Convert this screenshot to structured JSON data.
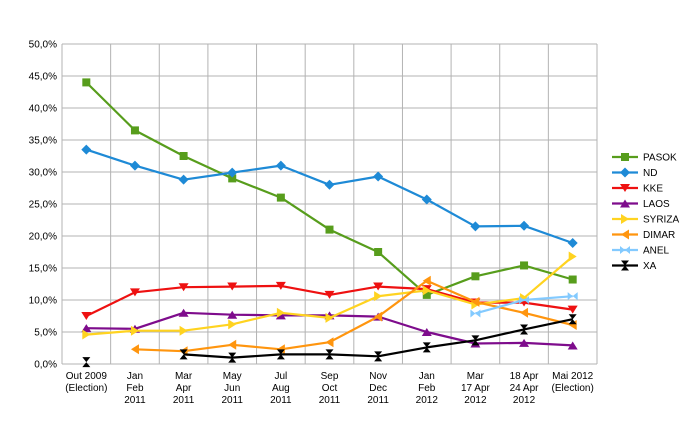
{
  "chart_data": {
    "type": "line",
    "title": "",
    "xlabel": "",
    "ylabel": "",
    "ylim": [
      0,
      50
    ],
    "ytick_step": 5,
    "ytick_labels": [
      "0,0%",
      "5,0%",
      "10,0%",
      "15,0%",
      "20,0%",
      "25,0%",
      "30,0%",
      "35,0%",
      "40,0%",
      "45,0%",
      "50,0%"
    ],
    "grid": "horizontal",
    "legend_position": "right",
    "categories": [
      [
        "Out 2009",
        "(Election)"
      ],
      [
        "Jan",
        "Feb",
        "2011"
      ],
      [
        "Mar",
        "Apr",
        "2011"
      ],
      [
        "May",
        "Jun",
        "2011"
      ],
      [
        "Jul",
        "Aug",
        "2011"
      ],
      [
        "Sep",
        "Oct",
        "2011"
      ],
      [
        "Nov",
        "Dec",
        "2011"
      ],
      [
        "Jan",
        "Feb",
        "2012"
      ],
      [
        "Mar",
        "17 Apr",
        "2012"
      ],
      [
        "18 Apr",
        "24 Apr",
        "2012"
      ],
      [
        "Mai 2012",
        "(Election)"
      ]
    ],
    "series": [
      {
        "name": "PASOK",
        "color": "#579d1c",
        "marker": "square",
        "values": [
          44.0,
          36.5,
          32.5,
          29.0,
          26.0,
          21.0,
          17.5,
          10.8,
          13.7,
          15.4,
          13.2
        ]
      },
      {
        "name": "ND",
        "color": "#1e8ad6",
        "marker": "diamond",
        "values": [
          33.5,
          31.0,
          28.8,
          29.9,
          31.0,
          28.0,
          29.3,
          25.7,
          21.5,
          21.6,
          18.9
        ]
      },
      {
        "name": "KKE",
        "color": "#ee1111",
        "marker": "triangle-down",
        "values": [
          7.5,
          11.2,
          12.0,
          12.1,
          12.2,
          10.8,
          12.1,
          11.7,
          9.6,
          9.6,
          8.5
        ]
      },
      {
        "name": "LAOS",
        "color": "#7e0c8c",
        "marker": "triangle-up",
        "values": [
          5.6,
          5.5,
          8.0,
          7.7,
          7.6,
          7.6,
          7.4,
          5.0,
          3.2,
          3.3,
          2.9
        ]
      },
      {
        "name": "SYRIZA",
        "color": "#ffd320",
        "marker": "triangle-right",
        "values": [
          4.6,
          5.2,
          5.2,
          6.2,
          8.0,
          7.2,
          10.6,
          11.5,
          9.3,
          10.3,
          16.8
        ]
      },
      {
        "name": "DIMAR",
        "color": "#ff950e",
        "marker": "triangle-left",
        "values": [
          null,
          2.3,
          2.0,
          3.0,
          2.3,
          3.4,
          7.4,
          13.0,
          9.7,
          8.0,
          6.1
        ]
      },
      {
        "name": "ANEL",
        "color": "#83caff",
        "marker": "bowtie",
        "values": [
          null,
          null,
          null,
          null,
          null,
          null,
          null,
          null,
          7.9,
          10.0,
          10.6
        ]
      },
      {
        "name": "XA",
        "color": "#000000",
        "marker": "hourglass",
        "values": [
          0.3,
          null,
          1.5,
          1.0,
          1.5,
          1.5,
          1.2,
          2.6,
          3.7,
          5.4,
          7.0
        ]
      }
    ]
  }
}
